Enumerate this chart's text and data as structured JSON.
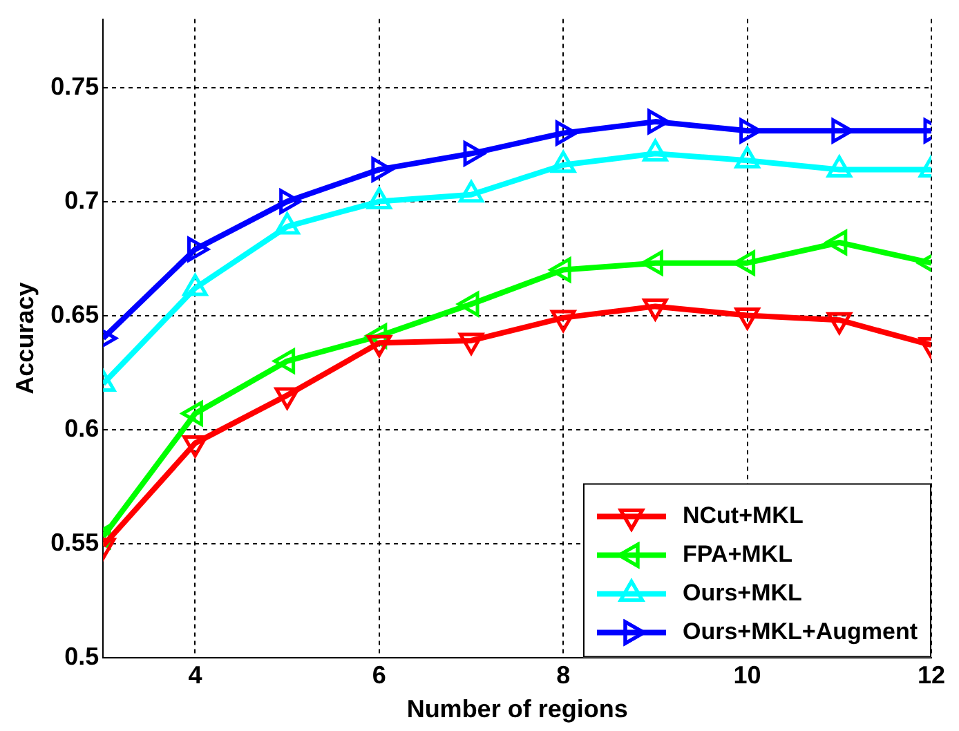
{
  "chart_data": {
    "type": "line",
    "xlabel": "Number of regions",
    "ylabel": "Accuracy",
    "x": [
      3,
      4,
      5,
      6,
      7,
      8,
      9,
      10,
      11,
      12
    ],
    "series": [
      {
        "name": "NCut+MKL",
        "color": "#ff0000",
        "marker": "triangle-down",
        "values": [
          0.549,
          0.594,
          0.615,
          0.638,
          0.639,
          0.649,
          0.654,
          0.65,
          0.648,
          0.637
        ]
      },
      {
        "name": "FPA+MKL",
        "color": "#00ff00",
        "marker": "triangle-left",
        "values": [
          0.553,
          0.607,
          0.63,
          0.641,
          0.655,
          0.67,
          0.673,
          0.673,
          0.682,
          0.673
        ]
      },
      {
        "name": "Ours+MKL",
        "color": "#00ffff",
        "marker": "triangle",
        "values": [
          0.62,
          0.662,
          0.689,
          0.7,
          0.703,
          0.716,
          0.721,
          0.718,
          0.714,
          0.714
        ]
      },
      {
        "name": "Ours+MKL+Augment",
        "color": "#0000ff",
        "marker": "triangle-right",
        "values": [
          0.64,
          0.679,
          0.7,
          0.714,
          0.721,
          0.73,
          0.735,
          0.731,
          0.731,
          0.731
        ]
      }
    ],
    "xlim": [
      3,
      12
    ],
    "xticks": [
      4,
      6,
      8,
      10,
      12
    ],
    "ylim": [
      0.5,
      0.78
    ],
    "yticks": [
      0.5,
      0.55,
      0.6,
      0.65,
      0.7,
      0.75
    ],
    "grid": true,
    "line_style": "solid",
    "legend": "bottom right"
  }
}
